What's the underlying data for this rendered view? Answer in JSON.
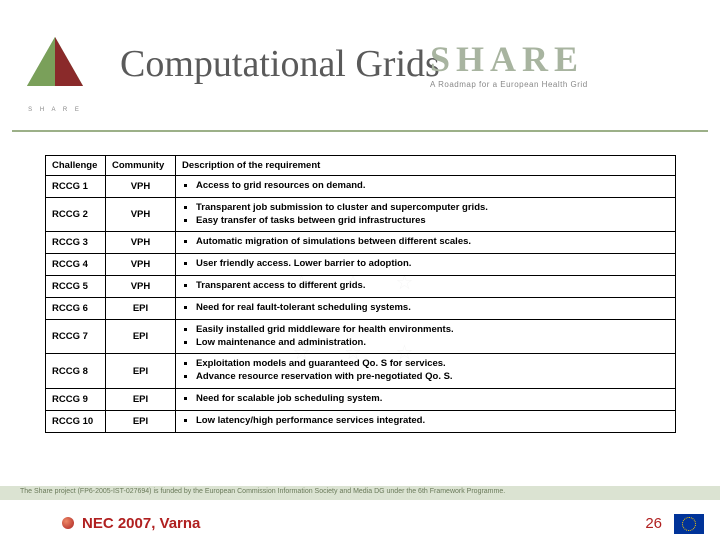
{
  "header": {
    "title": "Computational Grids",
    "logo_brand": "SHARE",
    "logo_tagline": "A Roadmap for a European Health Grid",
    "logo_small_label": "S H A R E"
  },
  "table": {
    "columns": [
      "Challenge",
      "Community",
      "Description of the requirement"
    ],
    "rows": [
      {
        "challenge": "RCCG 1",
        "community": "VPH",
        "desc": [
          "Access to grid resources on demand."
        ]
      },
      {
        "challenge": "RCCG 2",
        "community": "VPH",
        "desc": [
          "Transparent job submission to cluster and supercomputer grids.",
          "Easy transfer of tasks between grid infrastructures"
        ]
      },
      {
        "challenge": "RCCG 3",
        "community": "VPH",
        "desc": [
          "Automatic migration of simulations between different scales."
        ]
      },
      {
        "challenge": "RCCG 4",
        "community": "VPH",
        "desc": [
          "User friendly access. Lower barrier to adoption."
        ]
      },
      {
        "challenge": "RCCG 5",
        "community": "VPH",
        "desc": [
          "Transparent access to different grids."
        ]
      },
      {
        "challenge": "RCCG 6",
        "community": "EPI",
        "desc": [
          "Need for real fault-tolerant scheduling systems."
        ]
      },
      {
        "challenge": "RCCG 7",
        "community": "EPI",
        "desc": [
          "Easily installed grid middleware for health environments.",
          "Low maintenance and administration."
        ]
      },
      {
        "challenge": "RCCG 8",
        "community": "EPI",
        "desc": [
          "Exploitation models and guaranteed Qo. S for services.",
          "Advance resource reservation with pre-negotiated Qo. S."
        ]
      },
      {
        "challenge": "RCCG 9",
        "community": "EPI",
        "desc": [
          "Need for scalable job scheduling system."
        ]
      },
      {
        "challenge": "RCCG 10",
        "community": "EPI",
        "desc": [
          "Low latency/high performance services integrated."
        ]
      }
    ]
  },
  "footer": {
    "bar_text": "The Share project (FP6-2005-IST-027694) is funded by the European Commission Information Society and Media DG under the 6th Framework Programme.",
    "venue": "NEC 2007, Varna",
    "page": "26"
  },
  "style": {
    "title_color": "#5a5a5a",
    "accent_green": "#9cb088",
    "footer_text_color": "#b02020",
    "eu_blue": "#003399",
    "border_color": "#000000",
    "bg": "#ffffff"
  }
}
